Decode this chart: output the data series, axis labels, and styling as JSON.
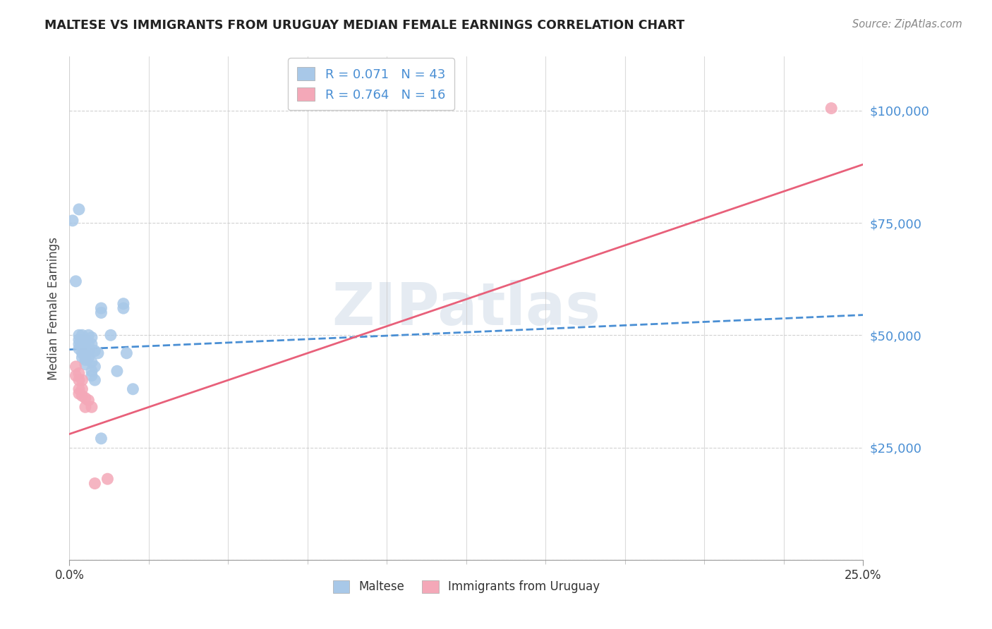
{
  "title": "MALTESE VS IMMIGRANTS FROM URUGUAY MEDIAN FEMALE EARNINGS CORRELATION CHART",
  "source": "Source: ZipAtlas.com",
  "ylabel_label": "Median Female Earnings",
  "ylabel_ticks": [
    0,
    25000,
    50000,
    75000,
    100000
  ],
  "ylabel_tick_labels": [
    "",
    "$25,000",
    "$50,000",
    "$75,000",
    "$100,000"
  ],
  "xlim": [
    0.0,
    0.25
  ],
  "ylim": [
    0,
    112000
  ],
  "maltese_color": "#a8c8e8",
  "uruguay_color": "#f4a8b8",
  "trend_blue_color": "#4a8fd4",
  "trend_pink_color": "#e8607a",
  "watermark_zip": "ZIP",
  "watermark_atlas": "atlas",
  "background_color": "#ffffff",
  "grid_color": "#cccccc",
  "maltese_scatter": [
    [
      0.001,
      75500
    ],
    [
      0.002,
      62000
    ],
    [
      0.003,
      78000
    ],
    [
      0.003,
      48000
    ],
    [
      0.003,
      50000
    ],
    [
      0.003,
      49000
    ],
    [
      0.003,
      47000
    ],
    [
      0.004,
      50000
    ],
    [
      0.004,
      49000
    ],
    [
      0.004,
      48000
    ],
    [
      0.004,
      47500
    ],
    [
      0.004,
      46000
    ],
    [
      0.004,
      45000
    ],
    [
      0.005,
      49000
    ],
    [
      0.005,
      48500
    ],
    [
      0.005,
      47500
    ],
    [
      0.005,
      46500
    ],
    [
      0.005,
      46000
    ],
    [
      0.005,
      45500
    ],
    [
      0.005,
      44500
    ],
    [
      0.005,
      43500
    ],
    [
      0.006,
      50000
    ],
    [
      0.006,
      48000
    ],
    [
      0.006,
      46500
    ],
    [
      0.006,
      45000
    ],
    [
      0.007,
      49500
    ],
    [
      0.007,
      48000
    ],
    [
      0.007,
      44000
    ],
    [
      0.007,
      42000
    ],
    [
      0.007,
      41000
    ],
    [
      0.008,
      46500
    ],
    [
      0.008,
      43000
    ],
    [
      0.008,
      40000
    ],
    [
      0.009,
      46000
    ],
    [
      0.01,
      56000
    ],
    [
      0.01,
      55000
    ],
    [
      0.01,
      27000
    ],
    [
      0.013,
      50000
    ],
    [
      0.015,
      42000
    ],
    [
      0.017,
      57000
    ],
    [
      0.017,
      56000
    ],
    [
      0.018,
      46000
    ],
    [
      0.02,
      38000
    ]
  ],
  "uruguay_scatter": [
    [
      0.002,
      43000
    ],
    [
      0.002,
      41000
    ],
    [
      0.003,
      41500
    ],
    [
      0.003,
      40000
    ],
    [
      0.003,
      38000
    ],
    [
      0.003,
      37000
    ],
    [
      0.004,
      40000
    ],
    [
      0.004,
      38000
    ],
    [
      0.004,
      36500
    ],
    [
      0.005,
      36000
    ],
    [
      0.005,
      34000
    ],
    [
      0.006,
      35500
    ],
    [
      0.007,
      34000
    ],
    [
      0.008,
      17000
    ],
    [
      0.012,
      18000
    ],
    [
      0.24,
      100500
    ]
  ],
  "maltese_trend_x": [
    0.0,
    0.25
  ],
  "maltese_trend_y": [
    46800,
    54500
  ],
  "uruguay_trend_x": [
    0.0,
    0.25
  ],
  "uruguay_trend_y": [
    28000,
    88000
  ],
  "xticks_major": [
    0.0,
    0.25
  ],
  "xticks_minor": [
    0.025,
    0.05,
    0.075,
    0.1,
    0.125,
    0.15,
    0.175,
    0.2,
    0.225
  ],
  "yticks_minor": [
    12500,
    37500,
    62500,
    87500
  ]
}
